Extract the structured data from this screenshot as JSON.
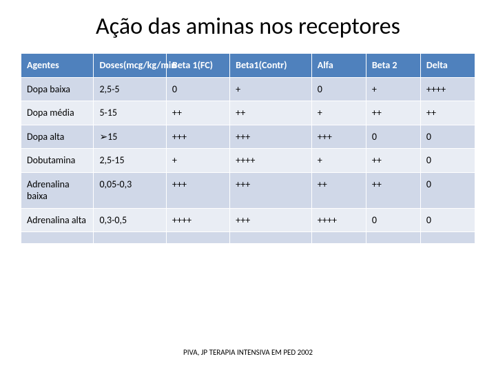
{
  "title": "Ação das aminas nos receptores",
  "caption": "PIVA, JP TERAPIA INTENSIVA EM PED 2002",
  "table": {
    "header_bg": "#4f81bd",
    "header_fg": "#ffffff",
    "band_a_bg": "#d0d8e8",
    "band_b_bg": "#e9edf4",
    "columns": [
      "Agentes",
      "Doses(mcg/kg/min",
      "Beta 1(FC)",
      "Beta1(Contr)",
      "Alfa",
      "Beta 2",
      "Delta"
    ],
    "rows": [
      [
        "Dopa baixa",
        "2,5-5",
        "0",
        "+",
        "0",
        "+",
        "++++"
      ],
      [
        "Dopa média",
        "5-15",
        "++",
        "++",
        "+",
        "++",
        "++"
      ],
      [
        "Dopa alta",
        "➢15",
        "+++",
        "+++",
        "+++",
        "0",
        "0"
      ],
      [
        "Dobutamina",
        "2,5-15",
        "+",
        "++++",
        "+",
        "++",
        "0"
      ],
      [
        "Adrenalina baixa",
        "0,05-0,3",
        "+++",
        "+++",
        "++",
        "++",
        "0"
      ],
      [
        "Adrenalina alta",
        "0,3-0,5",
        "++++",
        "+++",
        "++++",
        "0",
        "0"
      ],
      [
        "",
        "",
        "",
        "",
        "",
        "",
        ""
      ]
    ]
  }
}
